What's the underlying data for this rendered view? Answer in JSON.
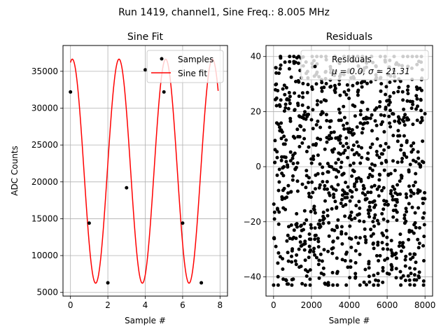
{
  "suptitle": "Run 1419, channel1, Sine Freq.: 8.005 MHz",
  "chart_data": [
    {
      "type": "line",
      "title": "Sine Fit",
      "xlabel": "Sample #",
      "ylabel": "ADC Counts",
      "xlim": [
        -0.4,
        8.4
      ],
      "ylim": [
        4500,
        38500
      ],
      "xticks": [
        0,
        2,
        4,
        6,
        8
      ],
      "yticks": [
        5000,
        10000,
        15000,
        20000,
        25000,
        30000,
        35000
      ],
      "ytick_labels": [
        "5000",
        "10000",
        "15000",
        "20000",
        "25000",
        "30000",
        "35000"
      ],
      "grid": true,
      "legend_position": "top-right",
      "series": [
        {
          "name": "Samples",
          "kind": "scatter",
          "color": "#000000",
          "x": [
            0,
            1,
            2,
            3,
            4,
            5,
            6,
            7
          ],
          "y": [
            32200,
            14400,
            6300,
            19200,
            35200,
            32200,
            14400,
            6300
          ]
        },
        {
          "name": "Sine fit",
          "kind": "line",
          "color": "#ff0000",
          "x_range": [
            0,
            7.9
          ],
          "offset": 21450,
          "amplitude": 15200,
          "cycles_per_sample": 0.40025,
          "phase_deg": 75.9
        }
      ],
      "legend": [
        "Samples",
        "Sine fit"
      ]
    },
    {
      "type": "scatter",
      "title": "Residuals",
      "xlabel": "Sample #",
      "ylabel": "",
      "xlim": [
        -400,
        8400
      ],
      "ylim": [
        -47,
        44
      ],
      "xticks": [
        0,
        2000,
        4000,
        6000,
        8000
      ],
      "yticks": [
        -40,
        -20,
        0,
        20,
        40
      ],
      "ytick_labels": [
        "−40",
        "−20",
        "0",
        "20",
        "40"
      ],
      "grid": true,
      "legend_position": "top-right",
      "legend": [
        "Residuals",
        "μ = 0.0, σ = 21.31"
      ],
      "series": [
        {
          "name": "Residuals",
          "color": "#000000",
          "n_points": 8000,
          "mean": 0.0,
          "std": 21.31,
          "min": -43,
          "max": 40
        }
      ]
    }
  ]
}
